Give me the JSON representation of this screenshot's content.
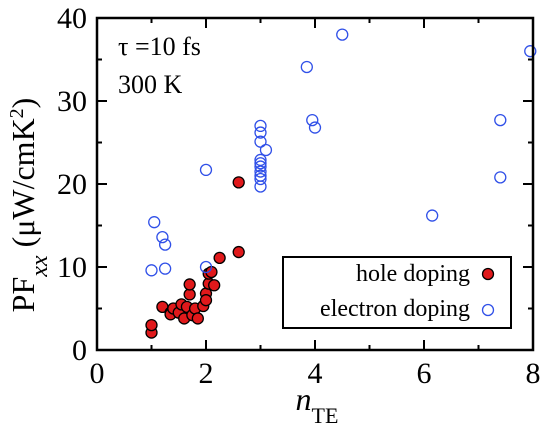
{
  "chart_data": {
    "type": "scatter",
    "xlabel": "n",
    "xlabel_sub": "TE",
    "ylabel": "PF",
    "ylabel_sub": "xx",
    "ylabel_units_open": " (μW/cmK",
    "ylabel_units_sup": "2",
    "ylabel_units_close": ")",
    "xlim": [
      0,
      8
    ],
    "ylim": [
      0,
      40
    ],
    "xticks": [
      0,
      2,
      4,
      6,
      8
    ],
    "yticks": [
      0,
      10,
      20,
      30,
      40
    ],
    "xtick_labels": [
      "0",
      "2",
      "4",
      "6",
      "8"
    ],
    "ytick_labels": [
      "0",
      "10",
      "20",
      "30",
      "40"
    ],
    "grid": false,
    "legend_position": "bottom-right",
    "annotations": [
      "τ =10 fs",
      "300 K"
    ],
    "series": [
      {
        "name": "hole doping",
        "marker": "filled-circle",
        "color": "#e0191b",
        "edge_color": "#000000",
        "points": [
          [
            1.0,
            2.1
          ],
          [
            1.0,
            3.0
          ],
          [
            1.2,
            5.2
          ],
          [
            1.35,
            4.5
          ],
          [
            1.35,
            4.3
          ],
          [
            1.4,
            5.0
          ],
          [
            1.5,
            4.5
          ],
          [
            1.55,
            5.5
          ],
          [
            1.6,
            3.8
          ],
          [
            1.65,
            5.2
          ],
          [
            1.7,
            6.7
          ],
          [
            1.7,
            7.9
          ],
          [
            1.75,
            4.2
          ],
          [
            1.8,
            5.0
          ],
          [
            1.85,
            3.8
          ],
          [
            1.95,
            5.3
          ],
          [
            2.0,
            6.8
          ],
          [
            2.0,
            6.0
          ],
          [
            2.05,
            8.0
          ],
          [
            2.05,
            9.2
          ],
          [
            2.1,
            9.4
          ],
          [
            2.15,
            7.8
          ],
          [
            2.25,
            11.1
          ],
          [
            2.6,
            20.2
          ],
          [
            2.6,
            11.8
          ]
        ]
      },
      {
        "name": "electron doping",
        "marker": "open-circle",
        "color": "#3050e8",
        "points": [
          [
            1.0,
            9.6
          ],
          [
            1.05,
            15.4
          ],
          [
            1.2,
            13.6
          ],
          [
            1.25,
            12.7
          ],
          [
            1.25,
            9.8
          ],
          [
            2.0,
            21.7
          ],
          [
            2.0,
            10.0
          ],
          [
            3.0,
            27.0
          ],
          [
            3.0,
            26.2
          ],
          [
            3.0,
            25.1
          ],
          [
            3.0,
            22.9
          ],
          [
            3.0,
            22.5
          ],
          [
            3.0,
            22.1
          ],
          [
            3.0,
            21.5
          ],
          [
            3.0,
            21.0
          ],
          [
            3.0,
            20.6
          ],
          [
            3.0,
            19.7
          ],
          [
            3.1,
            24.1
          ],
          [
            3.85,
            34.1
          ],
          [
            3.95,
            27.7
          ],
          [
            4.0,
            26.8
          ],
          [
            4.5,
            38.0
          ],
          [
            6.15,
            16.2
          ],
          [
            7.4,
            27.7
          ],
          [
            7.4,
            20.8
          ],
          [
            7.95,
            36.0
          ]
        ]
      }
    ]
  }
}
